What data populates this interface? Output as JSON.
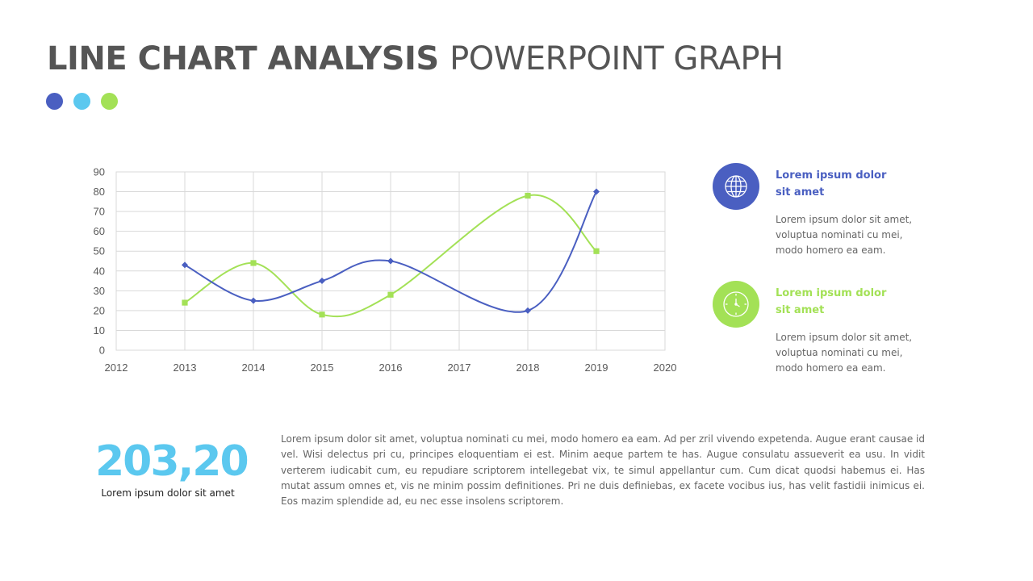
{
  "slide": {
    "title_bold": "LINE CHART ANALYSIS",
    "title_light": "POWERPOINT GRAPH"
  },
  "dots": [
    "#4a5fc1",
    "#5bc8ef",
    "#a3e156"
  ],
  "chart_data": {
    "type": "line",
    "title": "",
    "xlabel": "",
    "ylabel": "",
    "xlim": [
      2012,
      2020
    ],
    "ylim": [
      0,
      90
    ],
    "x_ticks": [
      2012,
      2013,
      2014,
      2015,
      2016,
      2017,
      2018,
      2019,
      2020
    ],
    "x_tick_labels": [
      "2012",
      "2013",
      "2014",
      "2015",
      "2016",
      "2017",
      "2018",
      "2019",
      "2020"
    ],
    "y_ticks": [
      0,
      10,
      20,
      30,
      40,
      50,
      60,
      70,
      80,
      90
    ],
    "y_tick_labels": [
      "0",
      "10",
      "20",
      "30",
      "40",
      "50",
      "60",
      "70",
      "80",
      "90"
    ],
    "grid": true,
    "smooth": true,
    "series": [
      {
        "color": "#4a5fc1",
        "marker": "diamond",
        "points": [
          [
            2013,
            43
          ],
          [
            2014,
            25
          ],
          [
            2015,
            35
          ],
          [
            2016,
            45
          ],
          [
            2018,
            20
          ],
          [
            2019,
            80
          ]
        ]
      },
      {
        "color": "#a3e156",
        "marker": "square",
        "points": [
          [
            2013,
            24
          ],
          [
            2014,
            44
          ],
          [
            2015,
            18
          ],
          [
            2016,
            28
          ],
          [
            2018,
            78
          ],
          [
            2019,
            50
          ]
        ]
      }
    ]
  },
  "info": [
    {
      "icon": "globe-icon",
      "color": "#4a5fc1",
      "heading_line1": "Lorem ipsum dolor",
      "heading_line2": "sit amet",
      "body_line1": "Lorem ipsum dolor sit amet,",
      "body_line2": "voluptua nominati cu mei,",
      "body_line3": "modo homero ea eam."
    },
    {
      "icon": "clock-icon",
      "color": "#a3e156",
      "heading_line1": "Lorem ipsum dolor",
      "heading_line2": "sit amet",
      "body_line1": "Lorem ipsum dolor sit amet,",
      "body_line2": "voluptua nominati cu mei,",
      "body_line3": "modo homero ea eam."
    }
  ],
  "stat": {
    "value": "203,20",
    "caption": "Lorem ipsum dolor sit amet"
  },
  "paragraph": "Lorem ipsum dolor sit amet, voluptua nominati cu mei, modo homero ea eam. Ad per zril vivendo expetenda. Augue erant causae id vel. Wisi delectus pri cu, principes eloquentiam ei est. Minim aeque partem te has. Augue consulatu assueverit ea usu. In vidit verterem iudicabit cum, eu repudiare scriptorem intellegebat vix, te simul appellantur cum. Cum dicat quodsi habemus ei. Has mutat assum omnes et, vis ne minim possim definitiones. Pri ne duis definiebas, ex facete vocibus ius, has velit fastidii inimicus ei. Eos mazim splendide ad, eu nec esse insolens scriptorem."
}
